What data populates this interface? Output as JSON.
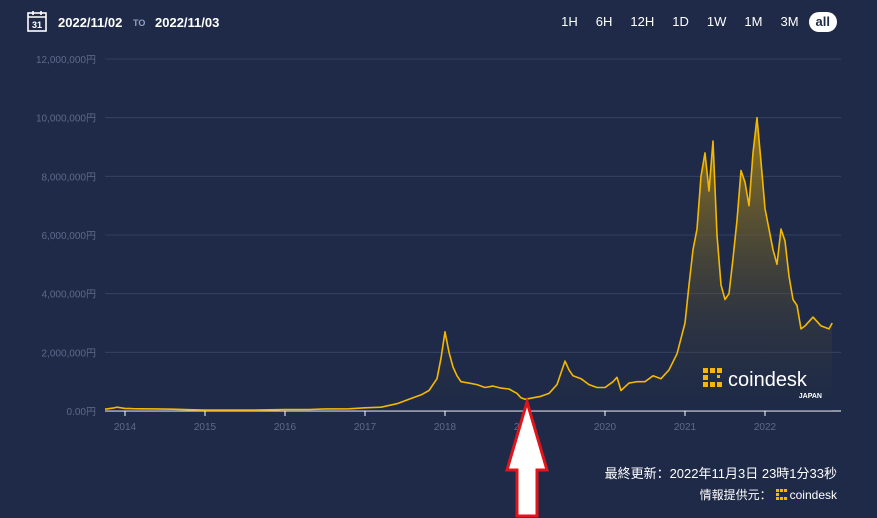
{
  "header": {
    "date_from": "2022/11/02",
    "to_label": "TO",
    "date_to": "2022/11/03",
    "calendar_day": "31",
    "ranges": [
      "1H",
      "6H",
      "12H",
      "1D",
      "1W",
      "1M",
      "3M",
      "all"
    ],
    "active_range": "all"
  },
  "watermark": {
    "brand": "coindesk",
    "sub": "JAPAN"
  },
  "footer": {
    "updated": "最終更新：2022年11月3日 23時1分33秒",
    "provider_label": "情報提供元：",
    "provider_name": "coindesk"
  },
  "colors": {
    "background": "#1e2a47",
    "line": "#f5b800",
    "grid": "#3a4668",
    "tick": "#5d6a8c",
    "arrow": "#e2141b"
  },
  "chart_data": {
    "type": "area",
    "title": "",
    "xlabel": "",
    "ylabel": "",
    "ylim": [
      0,
      12000000
    ],
    "y_ticks": [
      0,
      2000000,
      4000000,
      6000000,
      8000000,
      10000000,
      12000000
    ],
    "y_tick_labels": [
      "0.00円",
      "2,000,000円",
      "4,000,000円",
      "6,000,000円",
      "8,000,000円",
      "10,000,000円",
      "12,000,000円"
    ],
    "xlim": [
      2013.75,
      2022.95
    ],
    "x_ticks": [
      2014,
      2015,
      2016,
      2017,
      2018,
      2019,
      2020,
      2021,
      2022
    ],
    "x_tick_labels": [
      "2014",
      "2015",
      "2016",
      "2017",
      "2018",
      "2019",
      "2020",
      "2021",
      "2022"
    ],
    "grid": true,
    "series": [
      {
        "x": [
          2013.75,
          2013.85,
          2013.9,
          2013.95,
          2014.0,
          2014.1,
          2014.2,
          2014.4,
          2014.6,
          2014.8,
          2015.0,
          2015.3,
          2015.6,
          2015.9,
          2016.0,
          2016.3,
          2016.5,
          2016.8,
          2017.0,
          2017.2,
          2017.4,
          2017.5,
          2017.6,
          2017.7,
          2017.8,
          2017.9,
          2017.95,
          2018.0,
          2018.05,
          2018.1,
          2018.15,
          2018.2,
          2018.3,
          2018.4,
          2018.5,
          2018.6,
          2018.7,
          2018.8,
          2018.9,
          2018.95,
          2019.0,
          2019.1,
          2019.2,
          2019.3,
          2019.4,
          2019.45,
          2019.5,
          2019.55,
          2019.6,
          2019.7,
          2019.8,
          2019.9,
          2020.0,
          2020.1,
          2020.15,
          2020.2,
          2020.3,
          2020.4,
          2020.5,
          2020.6,
          2020.7,
          2020.8,
          2020.9,
          2021.0,
          2021.05,
          2021.1,
          2021.15,
          2021.2,
          2021.25,
          2021.3,
          2021.35,
          2021.4,
          2021.45,
          2021.5,
          2021.55,
          2021.6,
          2021.65,
          2021.7,
          2021.75,
          2021.8,
          2021.85,
          2021.9,
          2021.95,
          2022.0,
          2022.05,
          2022.1,
          2022.15,
          2022.2,
          2022.25,
          2022.3,
          2022.35,
          2022.4,
          2022.45,
          2022.5,
          2022.6,
          2022.7,
          2022.8,
          2022.84
        ],
        "values": [
          60000,
          100000,
          130000,
          110000,
          90000,
          80000,
          75000,
          70000,
          60000,
          45000,
          30000,
          30000,
          32000,
          45000,
          50000,
          50000,
          70000,
          75000,
          110000,
          130000,
          250000,
          350000,
          450000,
          550000,
          700000,
          1100000,
          1800000,
          2700000,
          2000000,
          1500000,
          1200000,
          1000000,
          950000,
          900000,
          800000,
          850000,
          780000,
          750000,
          600000,
          450000,
          400000,
          450000,
          500000,
          600000,
          900000,
          1300000,
          1700000,
          1400000,
          1200000,
          1100000,
          900000,
          800000,
          800000,
          1000000,
          1150000,
          700000,
          950000,
          1000000,
          1000000,
          1200000,
          1100000,
          1400000,
          1950000,
          3000000,
          4300000,
          5500000,
          6200000,
          8000000,
          8800000,
          7500000,
          9200000,
          6000000,
          4300000,
          3800000,
          4000000,
          5200000,
          6500000,
          8200000,
          7800000,
          7000000,
          8800000,
          10000000,
          8500000,
          6900000,
          6200000,
          5500000,
          5000000,
          6200000,
          5800000,
          4600000,
          3800000,
          3600000,
          2800000,
          2900000,
          3200000,
          2900000,
          2800000,
          3000000
        ]
      }
    ]
  }
}
